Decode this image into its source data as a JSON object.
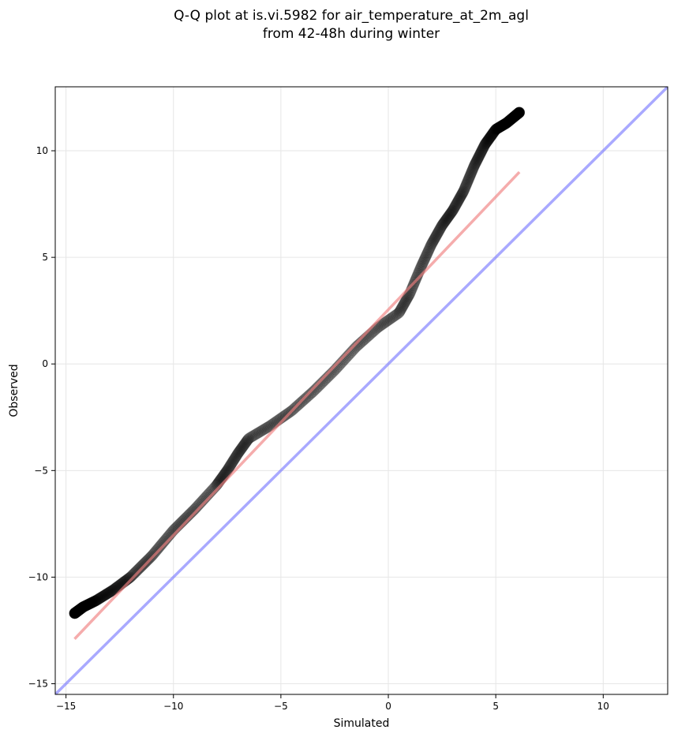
{
  "chart_data": {
    "type": "scatter",
    "title": "Q-Q plot at is.vi.5982 for air_temperature_at_2m_agl",
    "subtitle": "from 42-48h during winter",
    "xlabel": "Simulated",
    "ylabel": "Observed",
    "xlim": [
      -15.5,
      13
    ],
    "ylim": [
      -15.5,
      13
    ],
    "x_ticks": [
      -15,
      -10,
      -5,
      0,
      5,
      10
    ],
    "y_ticks": [
      -15,
      -10,
      -5,
      0,
      5,
      10
    ],
    "x_tick_labels": [
      "−15",
      "−10",
      "−5",
      "0",
      "5",
      "10"
    ],
    "y_tick_labels": [
      "−15",
      "−10",
      "−5",
      "0",
      "5",
      "10"
    ],
    "grid": true,
    "quantile_knots": {
      "x": [
        -14.6,
        -14.2,
        -13.6,
        -12.8,
        -12.0,
        -11.0,
        -10.0,
        -9.0,
        -8.0,
        -7.5,
        -7.0,
        -6.5,
        -5.5,
        -4.5,
        -3.5,
        -2.5,
        -1.5,
        -0.5,
        0.5,
        1.0,
        1.5,
        2.0,
        2.5,
        3.0,
        3.5,
        4.0,
        4.5,
        5.0,
        5.5,
        6.1
      ],
      "y": [
        -11.7,
        -11.4,
        -11.1,
        -10.6,
        -10.0,
        -9.0,
        -7.8,
        -6.8,
        -5.7,
        -5.0,
        -4.2,
        -3.5,
        -2.9,
        -2.2,
        -1.3,
        -0.3,
        0.8,
        1.7,
        2.4,
        3.3,
        4.5,
        5.6,
        6.5,
        7.2,
        8.1,
        9.3,
        10.3,
        11.0,
        11.3,
        11.8
      ]
    },
    "n_points": 900,
    "series": [
      {
        "values_from": "quantile_knots",
        "color": "#000000",
        "opacity_center": 0.5,
        "opacity_tails": 0.12
      }
    ],
    "fit_line": {
      "x": [
        -14.6,
        6.1
      ],
      "y": [
        -12.9,
        9.0
      ],
      "color": "#f08080",
      "opacity": 0.65
    },
    "identity_line": {
      "x": [
        -15.5,
        13
      ],
      "y": [
        -15.5,
        13
      ],
      "color": "#7b7bff",
      "opacity": 0.65
    }
  }
}
